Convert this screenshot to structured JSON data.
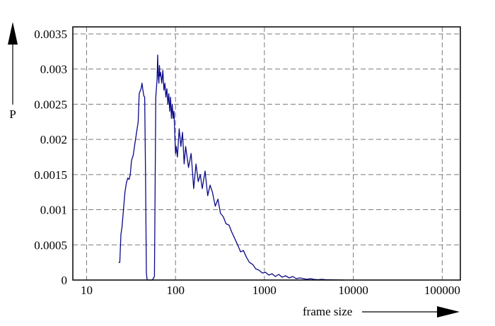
{
  "chart_data": {
    "type": "line",
    "title": "",
    "xlabel": "frame size",
    "ylabel": "P",
    "x_scale": "log",
    "xlim": [
      7,
      160000
    ],
    "ylim": [
      0,
      0.0036
    ],
    "grid": true,
    "x_ticks": [
      {
        "value": 10,
        "label": "10"
      },
      {
        "value": 100,
        "label": "100"
      },
      {
        "value": 1000,
        "label": "1000"
      },
      {
        "value": 10000,
        "label": "10000"
      },
      {
        "value": 100000,
        "label": "100000"
      }
    ],
    "y_ticks": [
      {
        "value": 0,
        "label": "0"
      },
      {
        "value": 0.0005,
        "label": "0.0005"
      },
      {
        "value": 0.001,
        "label": "0.001"
      },
      {
        "value": 0.0015,
        "label": "0.0015"
      },
      {
        "value": 0.002,
        "label": "0.002"
      },
      {
        "value": 0.0025,
        "label": "0.0025"
      },
      {
        "value": 0.003,
        "label": "0.003"
      },
      {
        "value": 0.0035,
        "label": "0.0035"
      }
    ],
    "series": [
      {
        "color": "#0a0a8a",
        "x": [
          22.9,
          23.6,
          24.3,
          25.0,
          26.0,
          27.0,
          28.0,
          29.0,
          30.0,
          31.0,
          32.0,
          33.5,
          35.0,
          36.0,
          38.0,
          39.0,
          41.0,
          42.0,
          43.0,
          44.0,
          45.0,
          46.0,
          47.0,
          48.0,
          49.0,
          50.0,
          52.0,
          55.0,
          58.0,
          60.0,
          62.0,
          63.0,
          64.0,
          65.0,
          66.0,
          67.0,
          68.0,
          70.0,
          72.0,
          74.0,
          76.0,
          78.0,
          80.0,
          82.0,
          84.0,
          86.0,
          88.0,
          90.0,
          92.0,
          94.0,
          96.0,
          98.0,
          100.0,
          102.0,
          105.0,
          110.0,
          115.0,
          120.0,
          125.0,
          130.0,
          140.0,
          150.0,
          160.0,
          170.0,
          180.0,
          190.0,
          200.0,
          215.0,
          230.0,
          245.0,
          260.0,
          280.0,
          300.0,
          320.0,
          345.0,
          370.0,
          400.0,
          430.0,
          460.0,
          500.0,
          540.0,
          580.0,
          630.0,
          680.0,
          740.0,
          800.0,
          870.0,
          950.0,
          1030.0,
          1120.0,
          1220.0,
          1330.0,
          1450.0,
          1580.0,
          1730.0,
          1900.0,
          2080.0,
          2280.0,
          2500.0,
          2750.0,
          3000.0,
          3300.0,
          3600.0,
          4000.0,
          4400.0,
          4900.0,
          5400.0,
          6000.0,
          6700.0,
          7500.0,
          7900.0
        ],
        "y": [
          0.00025,
          0.00025,
          0.00065,
          0.00075,
          0.001,
          0.00125,
          0.00138,
          0.00145,
          0.00143,
          0.0015,
          0.0017,
          0.00178,
          0.00195,
          0.00205,
          0.00225,
          0.00265,
          0.00272,
          0.0028,
          0.0027,
          0.00262,
          0.0026,
          0.0015,
          0.0001,
          0.0,
          0.0,
          0.0,
          0.0,
          0.0,
          5e-05,
          0.0026,
          0.00285,
          0.0032,
          0.0029,
          0.0028,
          0.00305,
          0.0029,
          0.00295,
          0.0028,
          0.00298,
          0.0027,
          0.0028,
          0.0026,
          0.00272,
          0.0025,
          0.00265,
          0.0024,
          0.0026,
          0.0023,
          0.0025,
          0.0023,
          0.0024,
          0.0021,
          0.0018,
          0.0019,
          0.00175,
          0.00215,
          0.0019,
          0.0021,
          0.00165,
          0.0019,
          0.0016,
          0.0018,
          0.0013,
          0.00165,
          0.0014,
          0.0015,
          0.0013,
          0.00155,
          0.0012,
          0.00135,
          0.00125,
          0.00105,
          0.00115,
          0.00095,
          0.0009,
          0.0008,
          0.00078,
          0.00068,
          0.0006,
          0.0005,
          0.0004,
          0.00042,
          0.00032,
          0.00025,
          0.00022,
          0.00016,
          0.00014,
          0.0001,
          0.00011,
          7e-05,
          9e-05,
          5e-05,
          8e-05,
          4e-05,
          6e-05,
          3e-05,
          5e-05,
          2e-05,
          3e-05,
          2e-05,
          1e-05,
          2e-05,
          1e-05,
          5e-06,
          1e-05,
          5e-06,
          3e-06,
          2e-06,
          1e-06,
          0.0,
          0.0
        ]
      }
    ]
  }
}
